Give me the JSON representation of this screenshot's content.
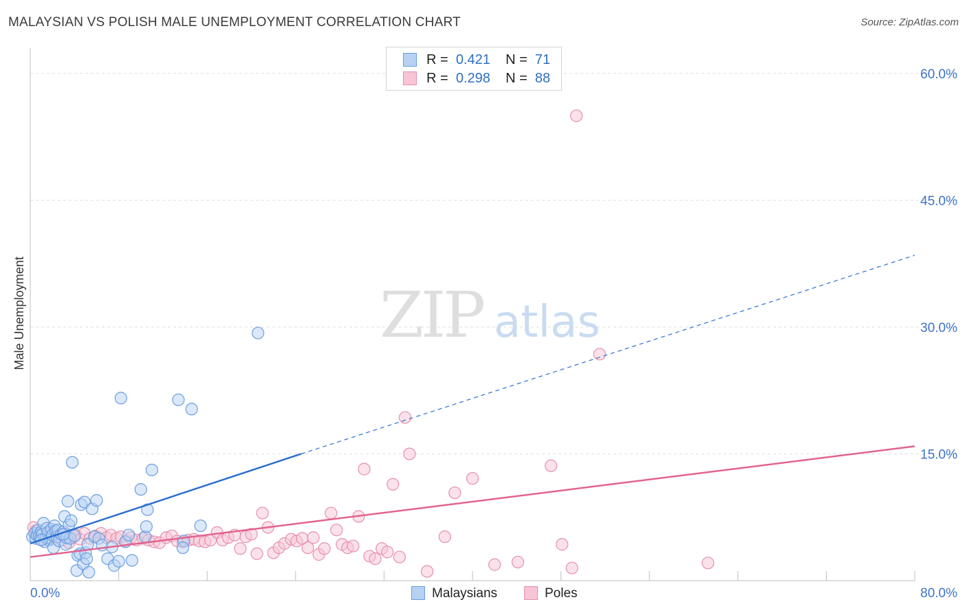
{
  "title": "MALAYSIAN VS POLISH MALE UNEMPLOYMENT CORRELATION CHART",
  "source": "Source: ZipAtlas.com",
  "watermark": {
    "zip": "ZIP",
    "atlas": "atlas"
  },
  "legend_top": [
    {
      "r_label": "R =",
      "r_value": "0.421",
      "n_label": "N =",
      "n_value": "71"
    },
    {
      "r_label": "R =",
      "r_value": "0.298",
      "n_label": "N =",
      "n_value": "88"
    }
  ],
  "legend_bottom": [
    "Malaysians",
    "Poles"
  ],
  "chart_data": {
    "type": "scatter",
    "title": "MALAYSIAN VS POLISH MALE UNEMPLOYMENT CORRELATION CHART",
    "xlabel": "",
    "ylabel": "Male Unemployment",
    "xlim": [
      0,
      80
    ],
    "ylim": [
      0,
      63
    ],
    "x_tick_labels": [
      "0.0%",
      "80.0%"
    ],
    "y_ticks": [
      15,
      30,
      45,
      60
    ],
    "y_tick_labels": [
      "15.0%",
      "30.0%",
      "45.0%",
      "60.0%"
    ],
    "grid": true,
    "colors": {
      "Malaysians": {
        "stroke": "#6a9ee0",
        "fill": "#b7d1f3",
        "line": "#2b6fcf"
      },
      "Poles": {
        "stroke": "#e68fac",
        "fill": "#f7c5d5",
        "line": "#e0638f"
      },
      "axis_label": "#3d73c7",
      "grid": "#dddddd"
    },
    "series": [
      {
        "name": "Malaysians",
        "r": 0.421,
        "n": 71,
        "trend": {
          "x0": 0,
          "y0": 4.4,
          "x1": 24.5,
          "y1": 15.0,
          "dash_x1": 80,
          "dash_y1": 38.5
        },
        "points": [
          [
            0.2,
            5.2
          ],
          [
            0.4,
            5.6
          ],
          [
            0.5,
            5.0
          ],
          [
            0.6,
            5.4
          ],
          [
            0.7,
            6.0
          ],
          [
            0.8,
            5.3
          ],
          [
            0.9,
            4.9
          ],
          [
            1.0,
            5.8
          ],
          [
            1.1,
            5.5
          ],
          [
            1.2,
            6.8
          ],
          [
            1.3,
            4.6
          ],
          [
            1.4,
            5.1
          ],
          [
            1.5,
            6.2
          ],
          [
            1.6,
            5.7
          ],
          [
            1.7,
            4.8
          ],
          [
            1.8,
            5.0
          ],
          [
            1.9,
            6.1
          ],
          [
            2.0,
            5.4
          ],
          [
            2.1,
            3.9
          ],
          [
            2.2,
            6.5
          ],
          [
            2.3,
            5.9
          ],
          [
            2.4,
            5.2
          ],
          [
            2.5,
            6.0
          ],
          [
            2.6,
            4.7
          ],
          [
            2.8,
            5.5
          ],
          [
            3.0,
            5.8
          ],
          [
            3.1,
            7.6
          ],
          [
            3.2,
            4.3
          ],
          [
            3.3,
            5.1
          ],
          [
            3.4,
            9.4
          ],
          [
            3.5,
            6.6
          ],
          [
            3.6,
            5.0
          ],
          [
            3.7,
            7.1
          ],
          [
            3.8,
            14.0
          ],
          [
            4.0,
            5.3
          ],
          [
            4.2,
            1.2
          ],
          [
            4.3,
            3.0
          ],
          [
            4.5,
            3.2
          ],
          [
            4.6,
            9.0
          ],
          [
            4.8,
            2.0
          ],
          [
            4.9,
            9.3
          ],
          [
            5.0,
            3.3
          ],
          [
            5.1,
            2.6
          ],
          [
            5.2,
            4.3
          ],
          [
            5.3,
            1.0
          ],
          [
            5.6,
            8.5
          ],
          [
            5.8,
            5.2
          ],
          [
            6.0,
            9.5
          ],
          [
            6.2,
            5.0
          ],
          [
            6.5,
            4.2
          ],
          [
            7.0,
            2.6
          ],
          [
            7.4,
            4.0
          ],
          [
            7.6,
            1.8
          ],
          [
            8.0,
            2.3
          ],
          [
            8.2,
            21.6
          ],
          [
            8.6,
            4.6
          ],
          [
            8.9,
            5.4
          ],
          [
            9.2,
            2.4
          ],
          [
            10.0,
            10.8
          ],
          [
            10.4,
            5.2
          ],
          [
            10.5,
            6.4
          ],
          [
            10.6,
            8.4
          ],
          [
            11.0,
            13.1
          ],
          [
            13.4,
            21.4
          ],
          [
            13.9,
            4.7
          ],
          [
            13.8,
            3.9
          ],
          [
            14.6,
            20.3
          ],
          [
            15.4,
            6.5
          ],
          [
            20.6,
            29.3
          ],
          [
            3.0,
            5.5
          ],
          [
            1.0,
            4.8
          ]
        ]
      },
      {
        "name": "Poles",
        "r": 0.298,
        "n": 88,
        "trend": {
          "x0": 0,
          "y0": 2.8,
          "x1": 80,
          "y1": 15.9
        },
        "points": [
          [
            0.3,
            6.3
          ],
          [
            0.5,
            5.9
          ],
          [
            0.7,
            5.2
          ],
          [
            0.9,
            5.5
          ],
          [
            1.1,
            4.9
          ],
          [
            1.3,
            5.6
          ],
          [
            1.5,
            5.1
          ],
          [
            1.8,
            5.4
          ],
          [
            2.0,
            5.8
          ],
          [
            2.3,
            5.0
          ],
          [
            2.6,
            5.3
          ],
          [
            2.9,
            4.8
          ],
          [
            3.2,
            5.6
          ],
          [
            3.5,
            4.5
          ],
          [
            3.8,
            5.1
          ],
          [
            4.1,
            5.4
          ],
          [
            4.5,
            4.9
          ],
          [
            4.9,
            5.6
          ],
          [
            5.4,
            5.0
          ],
          [
            5.9,
            5.3
          ],
          [
            6.4,
            5.6
          ],
          [
            6.9,
            5.1
          ],
          [
            7.3,
            5.4
          ],
          [
            7.8,
            5.0
          ],
          [
            8.2,
            5.2
          ],
          [
            8.7,
            4.7
          ],
          [
            9.1,
            5.1
          ],
          [
            9.6,
            4.8
          ],
          [
            10.2,
            5.0
          ],
          [
            10.7,
            4.8
          ],
          [
            11.2,
            4.6
          ],
          [
            11.7,
            4.5
          ],
          [
            12.3,
            5.1
          ],
          [
            12.8,
            5.3
          ],
          [
            13.3,
            4.7
          ],
          [
            13.8,
            4.6
          ],
          [
            14.3,
            4.8
          ],
          [
            14.8,
            4.9
          ],
          [
            15.3,
            4.7
          ],
          [
            15.8,
            4.6
          ],
          [
            16.3,
            4.8
          ],
          [
            16.9,
            5.7
          ],
          [
            17.4,
            4.8
          ],
          [
            17.9,
            5.1
          ],
          [
            18.5,
            5.4
          ],
          [
            19.0,
            3.8
          ],
          [
            19.5,
            5.2
          ],
          [
            20.0,
            5.5
          ],
          [
            20.5,
            3.2
          ],
          [
            21.0,
            8.0
          ],
          [
            21.5,
            6.3
          ],
          [
            22.0,
            3.3
          ],
          [
            22.5,
            3.9
          ],
          [
            23.0,
            4.4
          ],
          [
            23.6,
            4.9
          ],
          [
            24.1,
            4.7
          ],
          [
            24.6,
            5.0
          ],
          [
            25.1,
            3.9
          ],
          [
            25.6,
            5.1
          ],
          [
            26.1,
            3.1
          ],
          [
            26.6,
            3.8
          ],
          [
            27.2,
            8.0
          ],
          [
            27.7,
            6.0
          ],
          [
            28.2,
            4.3
          ],
          [
            28.7,
            3.9
          ],
          [
            29.2,
            4.1
          ],
          [
            29.7,
            7.6
          ],
          [
            30.2,
            13.2
          ],
          [
            30.7,
            2.9
          ],
          [
            31.2,
            2.6
          ],
          [
            31.8,
            3.8
          ],
          [
            32.3,
            3.4
          ],
          [
            32.8,
            11.4
          ],
          [
            33.4,
            2.8
          ],
          [
            33.9,
            19.3
          ],
          [
            34.3,
            15.0
          ],
          [
            35.9,
            1.1
          ],
          [
            37.5,
            5.2
          ],
          [
            38.4,
            10.4
          ],
          [
            40.0,
            12.1
          ],
          [
            42.0,
            1.9
          ],
          [
            44.1,
            2.2
          ],
          [
            47.1,
            13.6
          ],
          [
            48.1,
            4.3
          ],
          [
            49.0,
            1.5
          ],
          [
            49.4,
            55.0
          ],
          [
            51.5,
            26.8
          ],
          [
            61.3,
            2.1
          ]
        ]
      }
    ]
  }
}
